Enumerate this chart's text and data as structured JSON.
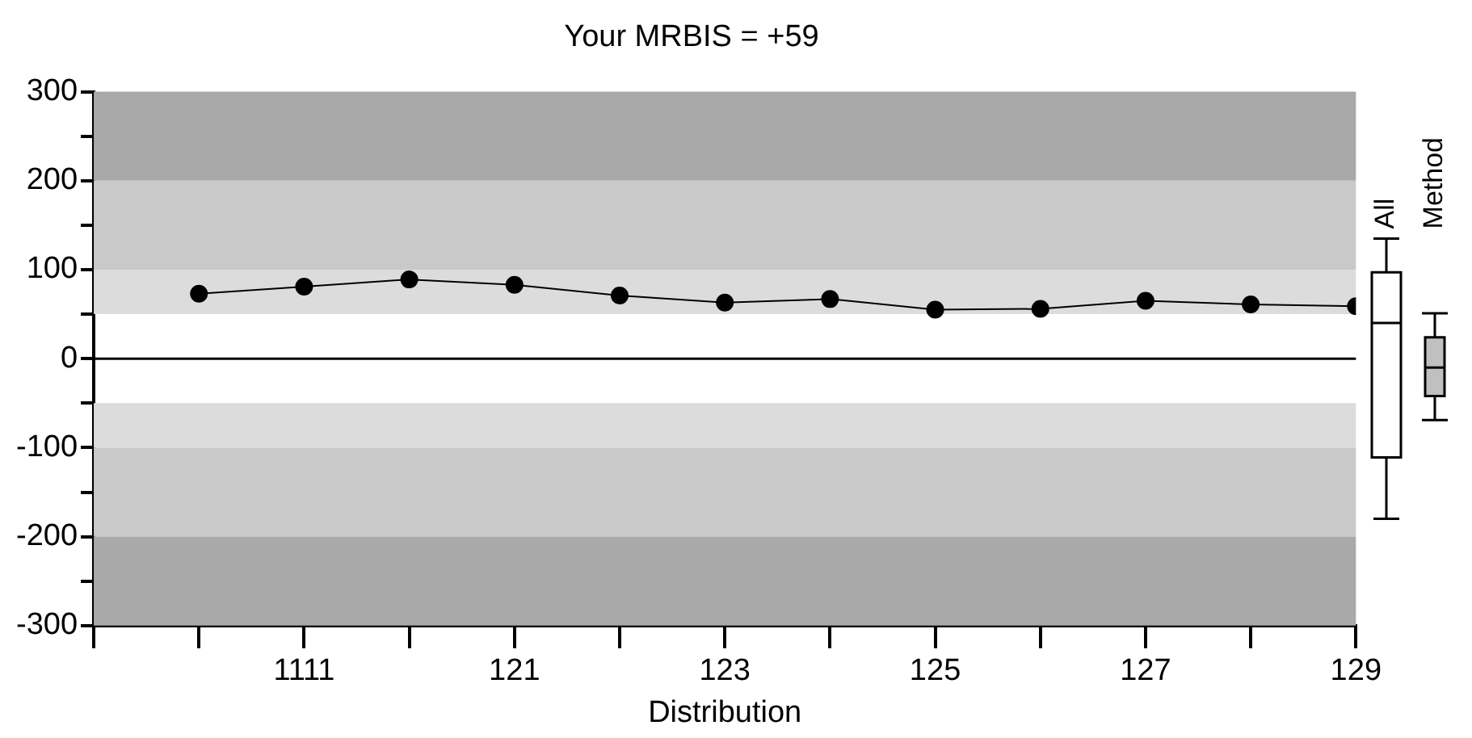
{
  "chart_data": [
    {
      "type": "line",
      "title": "Your MRBIS = +59",
      "xlabel": "Distribution",
      "categories": [
        null,
        "1111",
        null,
        "121",
        null,
        "123",
        null,
        "125",
        null,
        "127",
        null,
        "129"
      ],
      "series": [
        {
          "color": "#000000",
          "values": [
            73,
            81,
            89,
            83,
            71,
            63,
            67,
            55,
            56,
            65,
            61,
            59
          ]
        }
      ],
      "marker": "circle",
      "line_style": "solid",
      "grid": false,
      "legend": false,
      "ylim": [
        -300,
        300
      ],
      "yticks": [
        -300,
        {
          "value": -250,
          "label": null
        },
        -200,
        {
          "value": -150,
          "label": null
        },
        -100,
        {
          "value": -50,
          "label": null
        },
        0,
        {
          "value": 50,
          "label": null
        },
        100,
        {
          "value": 150,
          "label": null
        },
        200,
        {
          "value": 250,
          "label": null
        },
        300
      ],
      "bands": [
        {
          "axis": "y",
          "from": 200,
          "to": 300,
          "color": "#a9a9a9"
        },
        {
          "axis": "y",
          "from": 100,
          "to": 200,
          "color": "#c9c9c9"
        },
        {
          "axis": "y",
          "from": 50,
          "to": 100,
          "color": "#dcdcdc"
        },
        {
          "axis": "y",
          "from": -100,
          "to": -50,
          "color": "#dcdcdc"
        },
        {
          "axis": "y",
          "from": -200,
          "to": -100,
          "color": "#c9c9c9"
        },
        {
          "axis": "y",
          "from": -300,
          "to": -200,
          "color": "#a9a9a9"
        }
      ],
      "ref_lines": [
        {
          "axis": "y",
          "value": 0,
          "color": "#000000"
        }
      ]
    },
    {
      "type": "box",
      "categories": [
        "All",
        "Method"
      ],
      "colors": [
        "#ffffff",
        "#c0c0c0"
      ],
      "boxes": [
        {
          "low": -180,
          "q1": -111,
          "median": 40,
          "q3": 97,
          "high": 135
        },
        {
          "low": -69,
          "q1": -42,
          "median": -10,
          "q3": 24,
          "high": 51
        }
      ],
      "ylim": [
        -300,
        300
      ],
      "yticks": [
        -300,
        -200,
        -100,
        0,
        100,
        200,
        300
      ],
      "tick_labels": "x"
    }
  ]
}
